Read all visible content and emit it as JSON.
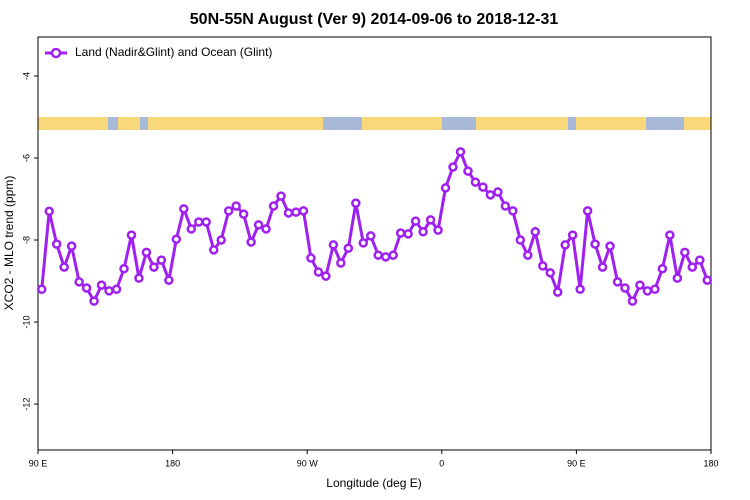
{
  "chart_data": {
    "type": "line",
    "title": "50N-55N August (Ver 9)   2014-09-06 to 2018-12-31",
    "x_label": "Longitude (deg E)",
    "y_label": "XCO2 - MLO trend (ppm)",
    "xlim": [
      90,
      540
    ],
    "xticks": [
      {
        "value": 90,
        "label": "90 E"
      },
      {
        "value": 180,
        "label": "180"
      },
      {
        "value": 270,
        "label": "90 W"
      },
      {
        "value": 360,
        "label": "0"
      },
      {
        "value": 450,
        "label": "90 E"
      },
      {
        "value": 540,
        "label": "180"
      }
    ],
    "ylim": [
      -13.12,
      -3.05
    ],
    "yticks": [
      -4,
      -6,
      -8,
      -10,
      -12
    ],
    "legend": "top-left",
    "x": [
      92.5,
      97.5,
      102.5,
      107.5,
      112.5,
      117.5,
      122.5,
      127.5,
      132.5,
      137.5,
      142.5,
      147.5,
      152.5,
      157.5,
      162.5,
      167.5,
      172.5,
      177.5,
      182.5,
      187.5,
      192.5,
      197.5,
      202.5,
      207.5,
      212.5,
      217.5,
      222.5,
      227.5,
      232.5,
      237.5,
      242.5,
      247.5,
      252.5,
      257.5,
      262.5,
      267.5,
      272.5,
      277.5,
      282.5,
      287.5,
      292.5,
      297.5,
      302.5,
      307.5,
      312.5,
      317.5,
      322.5,
      327.5,
      332.5,
      337.5,
      342.5,
      347.5,
      352.5,
      357.5,
      362.5,
      367.5,
      372.5,
      377.5,
      382.5,
      387.5,
      392.5,
      397.5,
      402.5,
      407.5,
      412.5,
      417.5,
      422.5,
      427.5,
      432.5,
      437.5,
      442.5,
      447.5,
      452.5,
      457.5,
      462.5,
      467.5,
      472.5,
      477.5,
      482.5,
      487.5,
      492.5,
      497.5,
      502.5,
      507.5,
      512.5,
      517.5,
      522.5,
      527.5,
      532.5,
      537.5
    ],
    "series": [
      {
        "name": "Land (Nadir&Glint) and Ocean (Glint)",
        "color": "#a020f0",
        "values": [
          -9.2,
          -7.3,
          -8.1,
          -8.66,
          -8.15,
          -9.02,
          -9.17,
          -9.49,
          -9.1,
          -9.24,
          -9.2,
          -8.7,
          -7.88,
          -8.93,
          -8.3,
          -8.66,
          -8.49,
          -8.98,
          -7.98,
          -7.24,
          -7.73,
          -7.56,
          -7.56,
          -8.24,
          -8.0,
          -7.29,
          -7.17,
          -7.37,
          -8.05,
          -7.63,
          -7.73,
          -7.17,
          -6.93,
          -7.34,
          -7.32,
          -7.29,
          -8.44,
          -8.78,
          -8.88,
          -8.12,
          -8.56,
          -8.2,
          -7.1,
          -8.07,
          -7.9,
          -8.37,
          -8.41,
          -8.37,
          -7.83,
          -7.85,
          -7.54,
          -7.8,
          -7.51,
          -7.76,
          -6.73,
          -6.22,
          -5.85,
          -6.32,
          -6.59,
          -6.71,
          -6.9,
          -6.83,
          -7.17,
          -7.29,
          -8.0,
          -8.37,
          -7.8,
          -8.63,
          -8.8,
          -9.27,
          -8.12,
          -7.88,
          -9.2,
          -7.29,
          -8.1,
          -8.66,
          -8.15,
          -9.02,
          -9.17,
          -9.49,
          -9.1,
          -9.24,
          -9.2,
          -8.7,
          -7.88,
          -8.93,
          -8.3,
          -8.66,
          -8.49,
          -8.98
        ]
      }
    ]
  }
}
